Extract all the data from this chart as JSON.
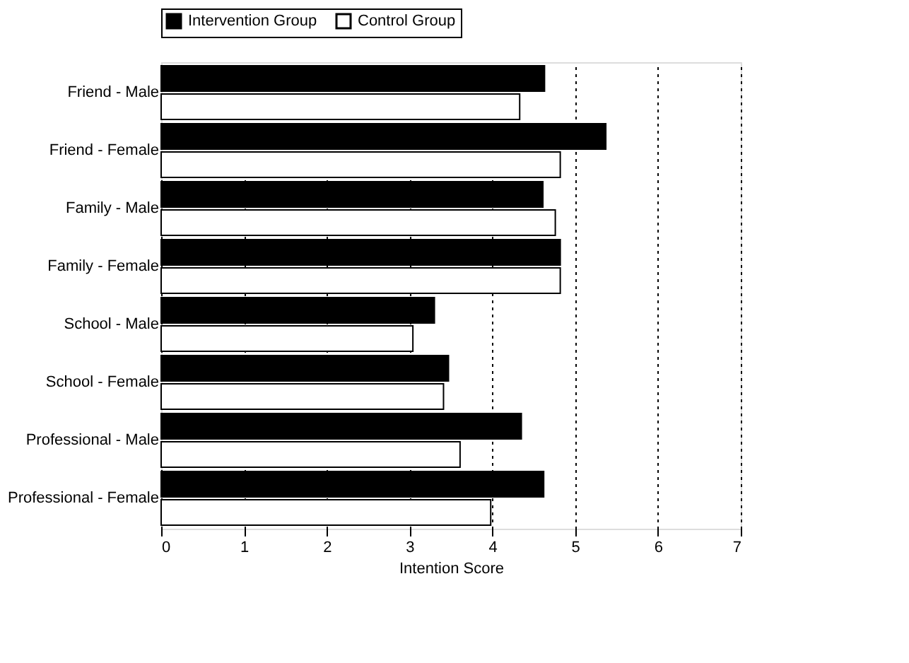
{
  "chart_data": {
    "type": "bar",
    "orientation": "horizontal",
    "xlabel": "Intention Score",
    "categories": [
      "Friend - Male",
      "Friend - Female",
      "Family - Male",
      "Family -  Female",
      "School - Male",
      "School - Female",
      "Professional - Male",
      "Professional - Female"
    ],
    "series": [
      {
        "name": "Intervention Group",
        "color": "#000000",
        "values": [
          4.63,
          5.37,
          4.61,
          4.82,
          3.3,
          3.47,
          4.35,
          4.62
        ]
      },
      {
        "name": "Control Group",
        "color": "#ffffff",
        "values": [
          4.33,
          4.82,
          4.76,
          4.82,
          3.04,
          3.41,
          3.61,
          3.98
        ]
      }
    ],
    "xlim": [
      0,
      7
    ],
    "xticks": [
      0,
      1,
      2,
      3,
      4,
      5,
      6,
      7
    ],
    "grid": "x",
    "legend": "top"
  }
}
